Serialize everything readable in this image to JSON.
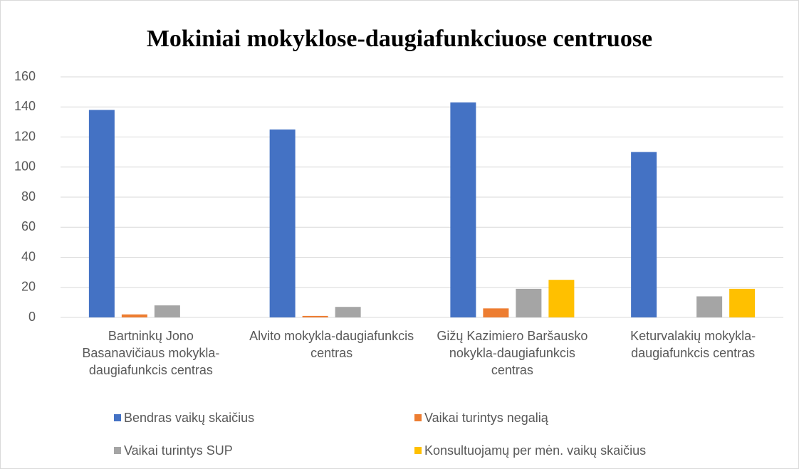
{
  "chart_data": {
    "type": "bar",
    "title": "Mokiniai mokyklose-daugiafunkciuose centruose",
    "categories": [
      "Bartninkų Jono Basanavičiaus mokykla-daugiafunkcis centras",
      "Alvito mokykla-daugiafunkcis centras",
      "Gižų Kazimiero Baršausko nokykla-daugiafunkcis centras",
      "Keturvalakių mokykla-daugiafunkcis centras"
    ],
    "series": [
      {
        "name": "Bendras vaikų skaičius",
        "color": "#4472c4",
        "values": [
          138,
          125,
          143,
          110
        ]
      },
      {
        "name": "Vaikai turintys negalią",
        "color": "#ed7d31",
        "values": [
          2,
          1,
          6,
          0
        ]
      },
      {
        "name": "Vaikai turintys SUP",
        "color": "#a5a5a5",
        "values": [
          8,
          7,
          19,
          14
        ]
      },
      {
        "name": "Konsultuojamų per mėn. vaikų skaičius",
        "color": "#ffc000",
        "values": [
          0,
          0,
          25,
          19
        ]
      }
    ],
    "ylim": [
      0,
      160
    ],
    "yticks": [
      0,
      20,
      40,
      60,
      80,
      100,
      120,
      140,
      160
    ],
    "grid": true,
    "legend": "bottom"
  }
}
